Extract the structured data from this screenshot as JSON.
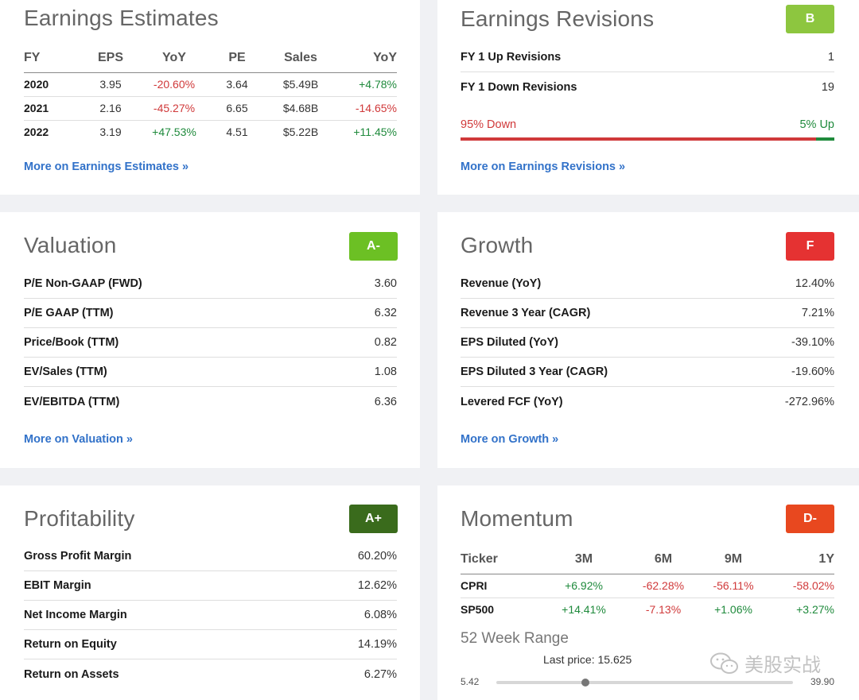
{
  "earnings_estimates": {
    "title": "Earnings Estimates",
    "headers": [
      "FY",
      "EPS",
      "YoY",
      "PE",
      "Sales",
      "YoY"
    ],
    "rows": [
      {
        "fy": "2020",
        "eps": "3.95",
        "yoy": "-20.60%",
        "pe": "3.64",
        "sales": "$5.49B",
        "sales_yoy": "+4.78%"
      },
      {
        "fy": "2021",
        "eps": "2.16",
        "yoy": "-45.27%",
        "pe": "6.65",
        "sales": "$4.68B",
        "sales_yoy": "-14.65%"
      },
      {
        "fy": "2022",
        "eps": "3.19",
        "yoy": "+47.53%",
        "pe": "4.51",
        "sales": "$5.22B",
        "sales_yoy": "+11.45%"
      }
    ],
    "more": "More on Earnings Estimates »"
  },
  "earnings_revisions": {
    "title": "Earnings Revisions",
    "grade": "B",
    "grade_color": "#8dc63f",
    "rows": [
      {
        "label": "FY 1 Up Revisions",
        "value": "1"
      },
      {
        "label": "FY 1 Down Revisions",
        "value": "19"
      }
    ],
    "down_label": "95% Down",
    "up_label": "5% Up",
    "down_fraction": 0.95,
    "more": "More on Earnings Revisions »"
  },
  "valuation": {
    "title": "Valuation",
    "grade": "A-",
    "grade_color": "#6cc024",
    "rows": [
      {
        "label": "P/E Non-GAAP (FWD)",
        "value": "3.60"
      },
      {
        "label": "P/E GAAP (TTM)",
        "value": "6.32"
      },
      {
        "label": "Price/Book (TTM)",
        "value": "0.82"
      },
      {
        "label": "EV/Sales (TTM)",
        "value": "1.08"
      },
      {
        "label": "EV/EBITDA (TTM)",
        "value": "6.36"
      }
    ],
    "more": "More on Valuation »"
  },
  "growth": {
    "title": "Growth",
    "grade": "F",
    "grade_color": "#e53232",
    "rows": [
      {
        "label": "Revenue (YoY)",
        "value": "12.40%"
      },
      {
        "label": "Revenue 3 Year (CAGR)",
        "value": "7.21%"
      },
      {
        "label": "EPS Diluted (YoY)",
        "value": "-39.10%"
      },
      {
        "label": "EPS Diluted 3 Year (CAGR)",
        "value": "-19.60%"
      },
      {
        "label": "Levered FCF (YoY)",
        "value": "-272.96%"
      }
    ],
    "more": "More on Growth »"
  },
  "profitability": {
    "title": "Profitability",
    "grade": "A+",
    "grade_color": "#3a6b1c",
    "rows": [
      {
        "label": "Gross Profit Margin",
        "value": "60.20%"
      },
      {
        "label": "EBIT Margin",
        "value": "12.62%"
      },
      {
        "label": "Net Income Margin",
        "value": "6.08%"
      },
      {
        "label": "Return on Equity",
        "value": "14.19%"
      },
      {
        "label": "Return on Assets",
        "value": "6.27%"
      }
    ]
  },
  "momentum": {
    "title": "Momentum",
    "grade": "D-",
    "grade_color": "#e8481f",
    "headers": [
      "Ticker",
      "3M",
      "6M",
      "9M",
      "1Y"
    ],
    "rows": [
      {
        "ticker": "CPRI",
        "m3": "+6.92%",
        "m6": "-62.28%",
        "m9": "-56.11%",
        "y1": "-58.02%"
      },
      {
        "ticker": "SP500",
        "m3": "+14.41%",
        "m6": "-7.13%",
        "m9": "+1.06%",
        "y1": "+3.27%"
      }
    ],
    "range_title": "52 Week Range",
    "last_price": "Last price: 15.625",
    "range_low": "5.42",
    "range_high": "39.90",
    "range_fraction": 0.3
  },
  "watermark": {
    "icon": "wechat-icon",
    "text": "美股实战"
  }
}
